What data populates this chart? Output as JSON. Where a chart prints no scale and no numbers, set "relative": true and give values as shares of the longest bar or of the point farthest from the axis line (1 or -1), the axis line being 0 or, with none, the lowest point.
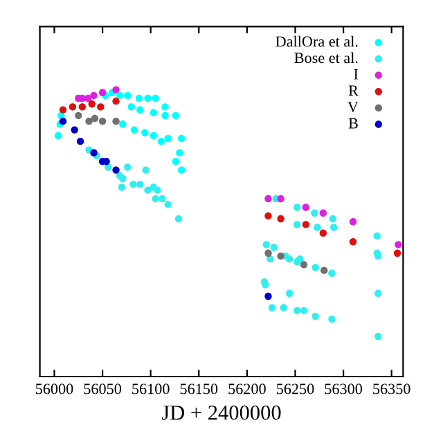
{
  "chart_data": {
    "type": "scatter",
    "xlabel": "JD + 2400000",
    "xlim": [
      55985,
      56362
    ],
    "xticks": [
      56000,
      56050,
      56100,
      56150,
      56200,
      56250,
      56300,
      56350
    ],
    "relative": true,
    "marker": "circle",
    "legend": "top right",
    "tick_labels": "x",
    "grid": false,
    "series": [
      {
        "name": "DallOra et al.",
        "color": "#00ffff",
        "x": [
          56053,
          56060,
          56068,
          56076,
          56088,
          56097,
          56105,
          56115,
          56126,
          56132,
          56130,
          56132,
          56126,
          56080,
          56089,
          56103,
          56115,
          56071,
          56083,
          56094,
          56103,
          56111,
          56118,
          56004,
          56006,
          56007
        ],
        "values": [
          0.98,
          0.99,
          0.98,
          0.98,
          0.97,
          0.97,
          0.97,
          0.94,
          0.91,
          0.83,
          0.78,
          0.72,
          0.75,
          0.94,
          0.93,
          0.92,
          0.91,
          0.88,
          0.86,
          0.85,
          0.84,
          0.82,
          0.83,
          0.84,
          0.88,
          0.91
        ]
      },
      {
        "name": "Bose et al.",
        "color": "#33eeee",
        "x": [
          56036,
          56044,
          56056,
          56068,
          56076,
          56071,
          56070,
          56082,
          56089,
          56095,
          56097,
          56103,
          56107,
          56105,
          56112,
          56118,
          56129,
          56230,
          56252,
          56270,
          56289,
          56273,
          56290,
          56252,
          56335,
          56335,
          56220,
          56228,
          56224,
          56240,
          56255,
          56244,
          56252,
          56271,
          56288,
          56218,
          56219,
          56244,
          56226,
          56238,
          56252,
          56259,
          56271,
          56288,
          56336,
          56336,
          56336
        ],
        "values": [
          0.79,
          0.77,
          0.73,
          0.7,
          0.73,
          0.69,
          0.66,
          0.67,
          0.67,
          0.72,
          0.65,
          0.66,
          0.65,
          0.62,
          0.62,
          0.6,
          0.55,
          0.62,
          0.59,
          0.57,
          0.55,
          0.52,
          0.52,
          0.53,
          0.49,
          0.43,
          0.46,
          0.45,
          0.41,
          0.42,
          0.41,
          0.41,
          0.4,
          0.38,
          0.36,
          0.33,
          0.32,
          0.29,
          0.24,
          0.24,
          0.23,
          0.23,
          0.21,
          0.2,
          0.42,
          0.29,
          0.14
        ]
      },
      {
        "name": "I",
        "color": "#dd22dd",
        "x": [
          56025,
          56029,
          56035,
          56041,
          56050,
          56064,
          56222,
          56235,
          56261,
          56279,
          56310,
          56357
        ],
        "values": [
          0.97,
          0.97,
          0.97,
          0.98,
          0.99,
          1.0,
          0.62,
          0.62,
          0.59,
          0.57,
          0.54,
          0.46
        ]
      },
      {
        "name": "R",
        "color": "#dd1111",
        "x": [
          56009,
          56019,
          56029,
          56039,
          56048,
          56064,
          56222,
          56235,
          56261,
          56279,
          56310,
          56356
        ],
        "values": [
          0.93,
          0.94,
          0.94,
          0.95,
          0.94,
          0.96,
          0.56,
          0.55,
          0.53,
          0.5,
          0.47,
          0.43
        ]
      },
      {
        "name": "V",
        "color": "#707070",
        "x": [
          56025,
          56036,
          56042,
          56050,
          56064,
          56222,
          56235,
          56259,
          56280
        ],
        "values": [
          0.91,
          0.89,
          0.9,
          0.89,
          0.89,
          0.43,
          0.42,
          0.39,
          0.37
        ]
      },
      {
        "name": "B",
        "color": "#0000cc",
        "x": [
          56009,
          56021,
          56027,
          56041,
          56050,
          56054,
          56064,
          56222
        ],
        "values": [
          0.89,
          0.86,
          0.82,
          0.78,
          0.75,
          0.75,
          0.72,
          0.28
        ]
      }
    ]
  }
}
